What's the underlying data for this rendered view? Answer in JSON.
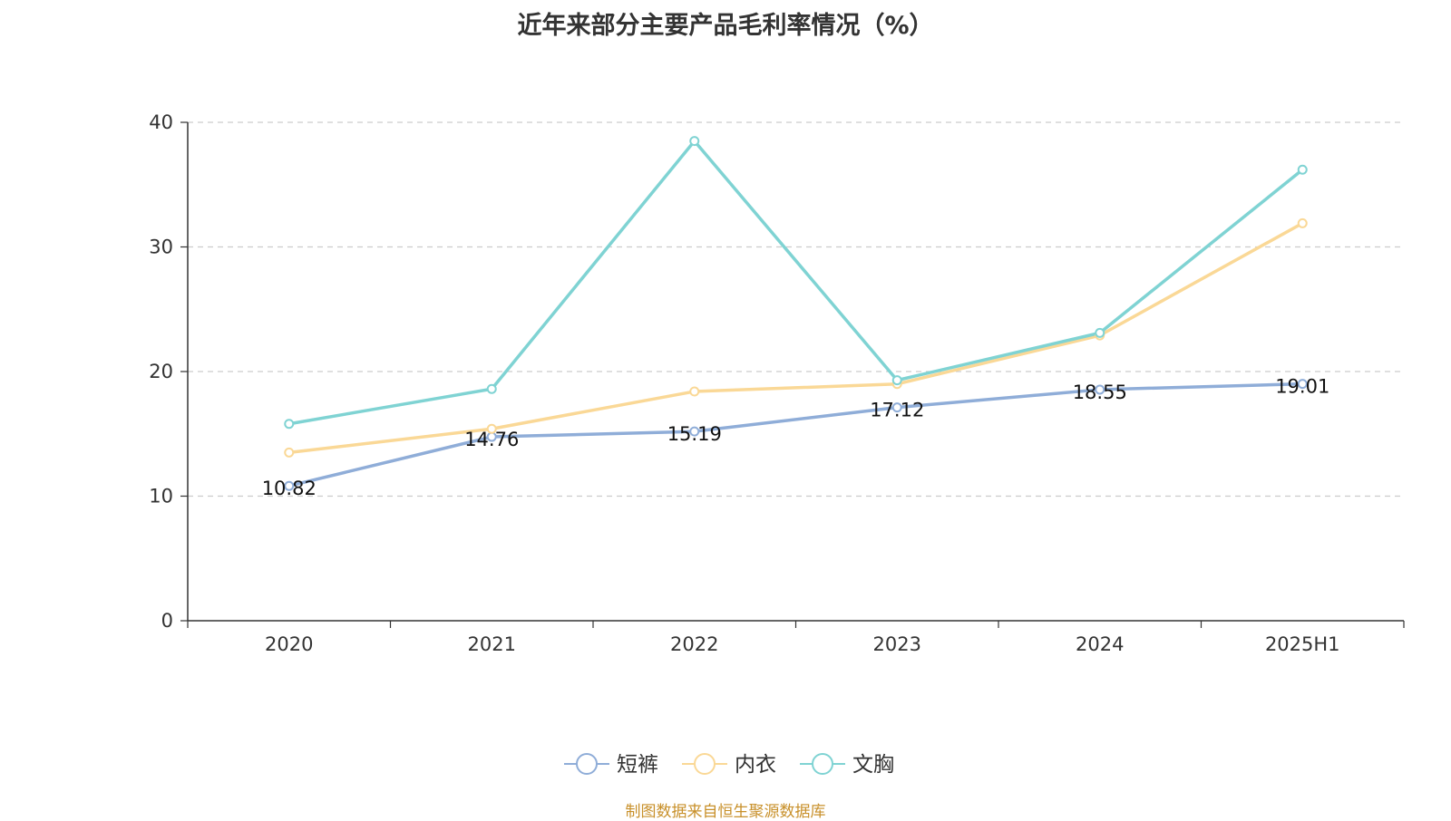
{
  "chart_data": {
    "type": "line",
    "title": "近年来部分主要产品毛利率情况（%）",
    "categories": [
      "2020",
      "2021",
      "2022",
      "2023",
      "2024",
      "2025H1"
    ],
    "ylim": [
      0,
      40
    ],
    "yticks": [
      0,
      10,
      20,
      30,
      40
    ],
    "grid": true,
    "legend_position": "bottom",
    "series": [
      {
        "name": "短裤",
        "color": "#8fadd8",
        "values": [
          10.82,
          14.76,
          15.19,
          17.12,
          18.55,
          19.01
        ],
        "labels": [
          "10.82",
          "14.76",
          "15.19",
          "17.12",
          "18.55",
          "19.01"
        ]
      },
      {
        "name": "内衣",
        "color": "#fad896",
        "values": [
          13.5,
          15.4,
          18.4,
          19.0,
          22.9,
          31.9
        ]
      },
      {
        "name": "文胸",
        "color": "#7fd3d3",
        "values": [
          15.8,
          18.6,
          38.5,
          19.3,
          23.1,
          36.2
        ]
      }
    ]
  },
  "source": "制图数据来自恒生聚源数据库"
}
